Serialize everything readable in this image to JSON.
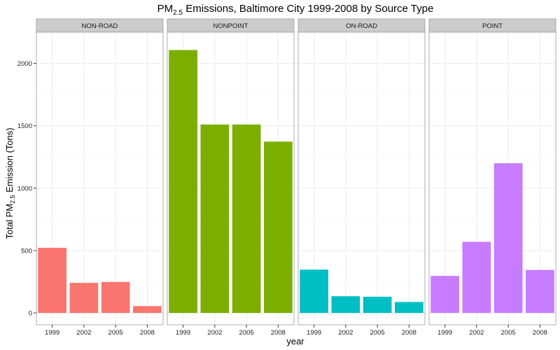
{
  "chart_data": {
    "type": "bar",
    "title": {
      "prefix": "PM",
      "subscript": "2.5",
      "suffix": " Emissions, Baltimore City 1999-2008 by Source Type"
    },
    "xlabel": "year",
    "ylabel": {
      "prefix": "Total PM",
      "subscript": "2.5",
      "suffix": " Emission (Tons)"
    },
    "categories": [
      "1999",
      "2002",
      "2005",
      "2008"
    ],
    "ylim": [
      -95,
      2250
    ],
    "yticks": [
      0,
      500,
      1000,
      1500,
      2000
    ],
    "grid": true,
    "legend": "none",
    "facets": [
      {
        "name": "NON-ROAD",
        "color": "#F8766D",
        "values": [
          522,
          241,
          248,
          55
        ]
      },
      {
        "name": "NONPOINT",
        "color": "#7CAE00",
        "values": [
          2107,
          1510,
          1510,
          1373
        ]
      },
      {
        "name": "ON-ROAD",
        "color": "#00BFC4",
        "values": [
          347,
          134,
          130,
          88
        ]
      },
      {
        "name": "POINT",
        "color": "#C77CFF",
        "values": [
          297,
          570,
          1200,
          345
        ]
      }
    ]
  }
}
